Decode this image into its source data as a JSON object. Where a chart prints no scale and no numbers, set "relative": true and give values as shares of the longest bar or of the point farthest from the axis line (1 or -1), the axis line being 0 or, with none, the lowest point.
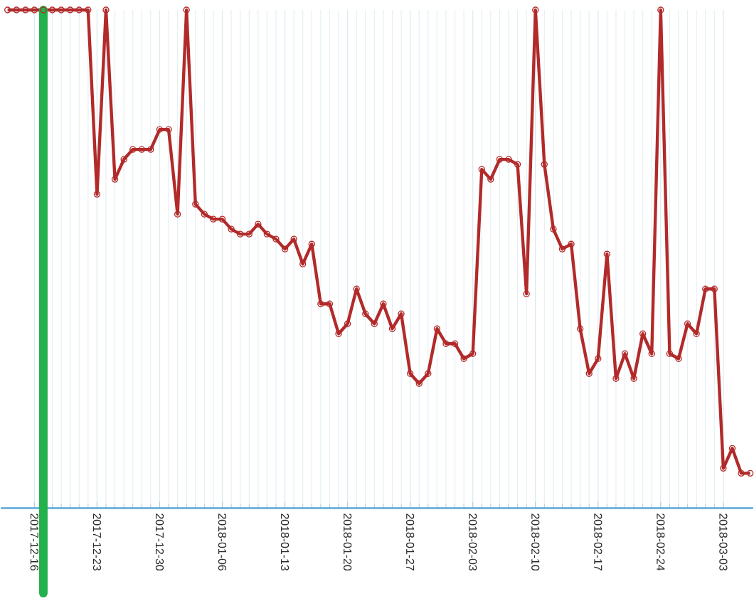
{
  "chart_data": {
    "type": "line",
    "relative": true,
    "grid": true,
    "marker": "circle",
    "line_style": "solid",
    "xlim": [
      "2017-12-12T06:00",
      "2018-03-06T08:00"
    ],
    "xticks": [
      "2017-12-16",
      "2017-12-23",
      "2017-12-30",
      "2018-01-06",
      "2018-01-13",
      "2018-01-20",
      "2018-01-27",
      "2018-02-03",
      "2018-02-10",
      "2018-02-17",
      "2018-02-24",
      "2018-03-03"
    ],
    "ref_lines": [
      {
        "axis": "x",
        "value": "2017-12-17",
        "color": "#22b14c"
      }
    ],
    "series": [
      {
        "color": "#b22a2a",
        "x": [
          "2017-12-13",
          "2017-12-14",
          "2017-12-15",
          "2017-12-16",
          "2017-12-17",
          "2017-12-18",
          "2017-12-19",
          "2017-12-20",
          "2017-12-21",
          "2017-12-22",
          "2017-12-23",
          "2017-12-24",
          "2017-12-25",
          "2017-12-26",
          "2017-12-27",
          "2017-12-28",
          "2017-12-29",
          "2017-12-30",
          "2017-12-31",
          "2018-01-01",
          "2018-01-02",
          "2018-01-03",
          "2018-01-04",
          "2018-01-05",
          "2018-01-06",
          "2018-01-07",
          "2018-01-08",
          "2018-01-09",
          "2018-01-10",
          "2018-01-11",
          "2018-01-12",
          "2018-01-13",
          "2018-01-14",
          "2018-01-15",
          "2018-01-16",
          "2018-01-17",
          "2018-01-18",
          "2018-01-19",
          "2018-01-20",
          "2018-01-21",
          "2018-01-22",
          "2018-01-23",
          "2018-01-24",
          "2018-01-25",
          "2018-01-26",
          "2018-01-27",
          "2018-01-28",
          "2018-01-29",
          "2018-01-30",
          "2018-01-31",
          "2018-02-01",
          "2018-02-02",
          "2018-02-03",
          "2018-02-04",
          "2018-02-05",
          "2018-02-06",
          "2018-02-07",
          "2018-02-08",
          "2018-02-09",
          "2018-02-10",
          "2018-02-11",
          "2018-02-12",
          "2018-02-13",
          "2018-02-14",
          "2018-02-15",
          "2018-02-16",
          "2018-02-17",
          "2018-02-18",
          "2018-02-19",
          "2018-02-20",
          "2018-02-21",
          "2018-02-22",
          "2018-02-23",
          "2018-02-24",
          "2018-02-25",
          "2018-02-26",
          "2018-02-27",
          "2018-02-28",
          "2018-03-01",
          "2018-03-02",
          "2018-03-03",
          "2018-03-04",
          "2018-03-05",
          "2018-03-06"
        ],
        "values": [
          1,
          1,
          1,
          1,
          1,
          1,
          1,
          1,
          1,
          1,
          0.63,
          1,
          0.66,
          0.7,
          0.72,
          0.72,
          0.72,
          0.76,
          0.76,
          0.59,
          1,
          0.61,
          0.59,
          0.58,
          0.58,
          0.56,
          0.55,
          0.55,
          0.57,
          0.55,
          0.54,
          0.52,
          0.54,
          0.49,
          0.53,
          0.41,
          0.41,
          0.35,
          0.37,
          0.44,
          0.39,
          0.37,
          0.41,
          0.36,
          0.39,
          0.27,
          0.25,
          0.27,
          0.36,
          0.33,
          0.33,
          0.3,
          0.31,
          0.68,
          0.66,
          0.7,
          0.7,
          0.69,
          0.43,
          1,
          0.69,
          0.56,
          0.52,
          0.53,
          0.36,
          0.27,
          0.3,
          0.51,
          0.26,
          0.31,
          0.26,
          0.35,
          0.31,
          1,
          0.31,
          0.3,
          0.37,
          0.35,
          0.44,
          0.44,
          0.08,
          0.12,
          0.07,
          0.07
        ]
      }
    ]
  }
}
